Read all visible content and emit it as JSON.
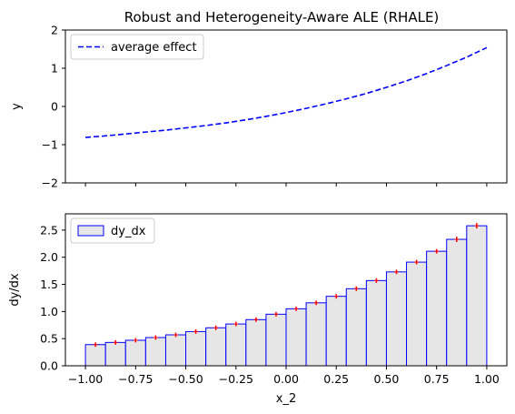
{
  "chart_data": [
    {
      "type": "line",
      "title": "Robust and Heterogeneity-Aware ALE (RHALE)",
      "xlabel": "",
      "ylabel": "y",
      "xlim": [
        -1.1,
        1.1
      ],
      "ylim": [
        -2,
        2
      ],
      "yticks": [
        -2,
        -1,
        0,
        1,
        2
      ],
      "legend": "top-left",
      "series": [
        {
          "name": "average effect",
          "style": "dashed",
          "color": "#0000ff",
          "x": [
            -1.0,
            -0.9,
            -0.8,
            -0.7,
            -0.6,
            -0.5,
            -0.4,
            -0.3,
            -0.2,
            -0.1,
            0.0,
            0.1,
            0.2,
            0.3,
            0.4,
            0.5,
            0.6,
            0.7,
            0.8,
            0.9,
            1.0
          ],
          "y": [
            -0.81,
            -0.77,
            -0.72,
            -0.67,
            -0.62,
            -0.56,
            -0.5,
            -0.43,
            -0.35,
            -0.26,
            -0.16,
            -0.05,
            0.07,
            0.2,
            0.34,
            0.5,
            0.67,
            0.86,
            1.07,
            1.29,
            1.54
          ]
        }
      ]
    },
    {
      "type": "bar",
      "title": "",
      "xlabel": "x_2",
      "ylabel": "dy/dx",
      "xlim": [
        -1.1,
        1.1
      ],
      "ylim": [
        0,
        2.8
      ],
      "xticks": [
        -1.0,
        -0.75,
        -0.5,
        -0.25,
        0.0,
        0.25,
        0.5,
        0.75,
        1.0
      ],
      "xtick_labels": [
        "−1.00",
        "−0.75",
        "−0.50",
        "−0.25",
        "0.00",
        "0.25",
        "0.50",
        "0.75",
        "1.00"
      ],
      "yticks": [
        0.0,
        0.5,
        1.0,
        1.5,
        2.0,
        2.5
      ],
      "ytick_labels": [
        "0.0",
        "0.5",
        "1.0",
        "1.5",
        "2.0",
        "2.5"
      ],
      "legend": "top-left",
      "bar_fill": "#e6e6e6",
      "bar_edge": "#0000ff",
      "error_color": "#ff0000",
      "series": [
        {
          "name": "dy_dx",
          "bin_edges": [
            -1.0,
            -0.9,
            -0.8,
            -0.7,
            -0.6,
            -0.5,
            -0.4,
            -0.3,
            -0.2,
            -0.1,
            0.0,
            0.1,
            0.2,
            0.3,
            0.4,
            0.5,
            0.6,
            0.7,
            0.8,
            0.9,
            1.0
          ],
          "values": [
            0.39,
            0.43,
            0.47,
            0.52,
            0.57,
            0.63,
            0.7,
            0.77,
            0.85,
            0.95,
            1.05,
            1.16,
            1.28,
            1.42,
            1.57,
            1.73,
            1.91,
            2.11,
            2.33,
            2.58
          ],
          "errors": [
            0.01,
            0.01,
            0.01,
            0.01,
            0.01,
            0.01,
            0.01,
            0.01,
            0.01,
            0.02,
            0.02,
            0.02,
            0.02,
            0.02,
            0.03,
            0.03,
            0.03,
            0.04,
            0.05,
            0.05
          ]
        }
      ]
    }
  ]
}
